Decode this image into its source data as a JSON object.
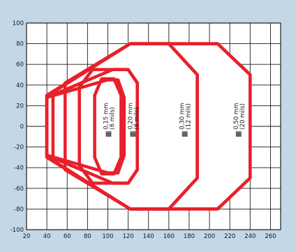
{
  "chart_data": {
    "type": "area",
    "title": "",
    "xlabel": "",
    "ylabel": "",
    "xlim": [
      20,
      270
    ],
    "ylim": [
      -100,
      100
    ],
    "x_ticks": [
      20,
      40,
      60,
      80,
      100,
      120,
      140,
      160,
      180,
      200,
      220,
      240,
      260
    ],
    "y_ticks": [
      -100,
      -80,
      -60,
      -40,
      -20,
      0,
      20,
      40,
      60,
      80,
      100
    ],
    "grid": true,
    "series": [
      {
        "name": "0,15 mm (6 mils)",
        "color": "#e8202a",
        "points": [
          [
            40,
            28
          ],
          [
            100,
            45
          ],
          [
            110,
            45
          ],
          [
            116,
            28
          ],
          [
            116,
            -28
          ],
          [
            110,
            -45
          ],
          [
            100,
            -45
          ],
          [
            40,
            -28
          ]
        ],
        "inner_points": [
          [
            94,
            46
          ],
          [
            106,
            46
          ],
          [
            113,
            30
          ],
          [
            113,
            -30
          ],
          [
            106,
            -46
          ],
          [
            94,
            -46
          ],
          [
            87,
            -30
          ],
          [
            87,
            30
          ]
        ]
      },
      {
        "name": "0,20 mm (8 mils)",
        "color": "#e8202a",
        "points": [
          [
            40,
            28
          ],
          [
            105,
            55
          ],
          [
            120,
            55
          ],
          [
            129,
            42
          ],
          [
            129,
            -42
          ],
          [
            120,
            -55
          ],
          [
            105,
            -55
          ],
          [
            40,
            -28
          ]
        ],
        "inner_points": [
          [
            85,
            55
          ],
          [
            120,
            55
          ],
          [
            129,
            42
          ],
          [
            129,
            -42
          ],
          [
            120,
            -55
          ],
          [
            85,
            -55
          ],
          [
            72,
            -38
          ],
          [
            72,
            38
          ]
        ]
      },
      {
        "name": "0,30 mm (12 mils)",
        "color": "#e8202a",
        "points": [
          [
            40,
            30
          ],
          [
            122,
            80
          ],
          [
            160,
            80
          ],
          [
            188,
            50
          ],
          [
            188,
            -50
          ],
          [
            160,
            -80
          ],
          [
            122,
            -80
          ],
          [
            40,
            -30
          ]
        ],
        "inner_points": [
          [
            122,
            80
          ],
          [
            160,
            80
          ],
          [
            188,
            50
          ],
          [
            188,
            -50
          ],
          [
            160,
            -80
          ],
          [
            122,
            -80
          ],
          [
            58,
            -42
          ],
          [
            58,
            42
          ]
        ]
      },
      {
        "name": "0,50 mm (20 mils)",
        "color": "#e8202a",
        "points": [
          [
            40,
            30
          ],
          [
            122,
            80
          ],
          [
            208,
            80
          ],
          [
            240,
            50
          ],
          [
            240,
            -50
          ],
          [
            208,
            -80
          ],
          [
            122,
            -80
          ],
          [
            40,
            -30
          ]
        ],
        "inner_points": [
          [
            122,
            80
          ],
          [
            208,
            80
          ],
          [
            240,
            50
          ],
          [
            240,
            -50
          ],
          [
            208,
            -80
          ],
          [
            122,
            -80
          ],
          [
            46,
            -33
          ],
          [
            46,
            33
          ]
        ]
      }
    ],
    "annotations": [
      {
        "line1": "0,15 mm",
        "line2": "(6 mils)",
        "x": 100,
        "y": 5
      },
      {
        "line1": "0,20 mm",
        "line2": "(8 mils)",
        "x": 124,
        "y": 5
      },
      {
        "line1": "0,30 mm",
        "line2": "(12 mils)",
        "x": 175,
        "y": 5
      },
      {
        "line1": "0,50 mm",
        "line2": "(20 mils)",
        "x": 228,
        "y": 5
      }
    ]
  }
}
